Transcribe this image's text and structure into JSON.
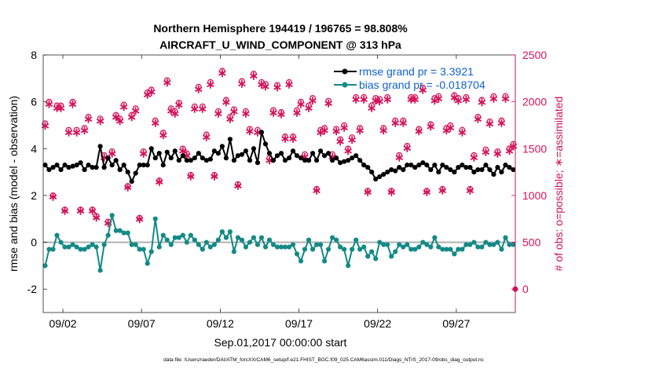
{
  "chart_data": {
    "type": "line",
    "title": "Northern Hemisphere 194419 / 196765 = 98.808%",
    "subtitle": "AIRCRAFT_U_WIND_COMPONENT @ 313 hPa",
    "xlabel": "Sep.01,2017 00:00:00 start",
    "ylabel_left": "rmse and bias (model - observation)",
    "ylabel_right": "# of obs: o=possible; ∗=assimilated",
    "footnote": "data file: /Users/raeder/DAI/ATM_forcXX/CAM6_setup/f.e21.FHIST_BGC.f09_025.CAM6assim.011/Diags_NTrS_2017-09/obs_diag_output.nc",
    "xlim": [
      0,
      30
    ],
    "ylim_left": [
      -3,
      8
    ],
    "ylim_right": [
      -250,
      2500
    ],
    "xticks": [
      1.25,
      6.25,
      11.25,
      16.25,
      21.25,
      26.25
    ],
    "xtick_labels": [
      "09/02",
      "09/07",
      "09/12",
      "09/17",
      "09/22",
      "09/27"
    ],
    "yticks_left": [
      "-2",
      "0",
      "2",
      "4",
      "6",
      "8"
    ],
    "yticks_right": [
      "0",
      "500",
      "1000",
      "1500",
      "2000",
      "2500"
    ],
    "grid": false,
    "legend_placement": "top-right",
    "legend": [
      "rmse grand pr = 3.3921",
      "bias grand pr = -0.018704"
    ],
    "x": [
      0.125,
      0.375,
      0.625,
      0.875,
      1.125,
      1.375,
      1.625,
      1.875,
      2.125,
      2.375,
      2.625,
      2.875,
      3.125,
      3.375,
      3.625,
      3.875,
      4.125,
      4.375,
      4.625,
      4.875,
      5.125,
      5.375,
      5.625,
      5.875,
      6.125,
      6.375,
      6.625,
      6.875,
      7.125,
      7.375,
      7.625,
      7.875,
      8.125,
      8.375,
      8.625,
      8.875,
      9.125,
      9.375,
      9.625,
      9.875,
      10.125,
      10.375,
      10.625,
      10.875,
      11.125,
      11.375,
      11.625,
      11.875,
      12.125,
      12.375,
      12.625,
      12.875,
      13.125,
      13.375,
      13.625,
      13.875,
      14.125,
      14.375,
      14.625,
      14.875,
      15.125,
      15.375,
      15.625,
      15.875,
      16.125,
      16.375,
      16.625,
      16.875,
      17.125,
      17.375,
      17.625,
      17.875,
      18.125,
      18.375,
      18.625,
      18.875,
      19.125,
      19.375,
      19.625,
      19.875,
      20.125,
      20.375,
      20.625,
      20.875,
      21.125,
      21.375,
      21.625,
      21.875,
      22.125,
      22.375,
      22.625,
      22.875,
      23.125,
      23.375,
      23.625,
      23.875,
      24.125,
      24.375,
      24.625,
      24.875,
      25.125,
      25.375,
      25.625,
      25.875,
      26.125,
      26.375,
      26.625,
      26.875,
      27.125,
      27.375,
      27.625,
      27.875,
      28.125,
      28.375,
      28.625,
      28.875,
      29.125,
      29.375,
      29.625,
      29.875
    ],
    "series": [
      {
        "name": "rmse grand pr = 3.3921",
        "color": "#000000",
        "marker": "circle",
        "values": [
          3.3,
          3.1,
          3.2,
          3.3,
          3.1,
          3.3,
          3.2,
          3.25,
          3.3,
          3.4,
          3.1,
          3.3,
          3.2,
          3.2,
          4.1,
          3.2,
          3.6,
          3.3,
          3.5,
          3.1,
          3.3,
          3.0,
          2.6,
          2.95,
          3.3,
          3.3,
          3.3,
          4.0,
          3.6,
          3.8,
          3.3,
          3.85,
          3.6,
          3.9,
          3.5,
          3.7,
          3.5,
          3.5,
          3.6,
          3.8,
          3.6,
          3.5,
          3.55,
          3.9,
          3.8,
          4.1,
          3.6,
          4.4,
          3.5,
          3.7,
          3.75,
          3.9,
          3.5,
          4.0,
          3.4,
          4.7,
          4.2,
          3.8,
          3.5,
          3.7,
          3.8,
          3.5,
          3.6,
          3.9,
          3.7,
          3.6,
          3.5,
          3.5,
          3.8,
          3.5,
          3.9,
          3.7,
          3.8,
          3.5,
          3.6,
          3.4,
          3.45,
          3.5,
          3.6,
          3.7,
          3.5,
          3.3,
          3.2,
          3.0,
          2.7,
          2.8,
          2.9,
          3.0,
          3.1,
          3.05,
          3.2,
          3.1,
          3.3,
          3.3,
          3.2,
          3.3,
          3.4,
          3.3,
          3.1,
          3.3,
          3.0,
          3.3,
          3.2,
          3.1,
          3.0,
          3.2,
          3.3,
          3.2,
          3.2,
          3.0,
          3.1,
          3.1,
          3.3,
          3.1,
          2.9,
          3.2,
          3.0,
          3.3,
          3.2,
          3.1
        ],
        "values_note": ""
      },
      {
        "name": "bias grand pr = -0.018704",
        "color": "#138a86",
        "marker": "circle",
        "values": [
          -1.0,
          -0.3,
          -0.3,
          0.3,
          0.0,
          -0.2,
          -0.2,
          -0.1,
          -0.2,
          -0.3,
          -0.3,
          -0.2,
          -0.1,
          -0.2,
          -1.2,
          -0.1,
          0.3,
          1.15,
          0.5,
          0.5,
          0.4,
          0.4,
          -0.1,
          -0.1,
          -0.3,
          -0.3,
          -0.9,
          -0.4,
          1.0,
          -0.2,
          0.3,
          0.1,
          -0.1,
          0.2,
          0.2,
          0.3,
          0.0,
          0.3,
          0.1,
          -0.1,
          -0.3,
          0.0,
          -0.2,
          -0.1,
          0.1,
          0.45,
          0.2,
          0.45,
          -0.4,
          0.2,
          0.1,
          -0.2,
          0.0,
          0.2,
          -0.1,
          0.2,
          -0.2,
          0.1,
          -0.1,
          -0.2,
          -0.2,
          -0.2,
          -0.2,
          -0.1,
          -0.5,
          -0.8,
          -0.3,
          0.1,
          -0.3,
          -0.1,
          -0.1,
          -0.8,
          -0.3,
          0.2,
          0.1,
          -0.2,
          -0.3,
          -1.0,
          -0.3,
          0.1,
          -0.3,
          -0.2,
          -0.6,
          -0.4,
          -0.7,
          0.0,
          -0.1,
          -0.1,
          -0.6,
          -0.4,
          -0.1,
          -0.2,
          -0.1,
          -0.3,
          -0.3,
          -0.2,
          0.0,
          -0.1,
          -0.2,
          0.2,
          -0.2,
          -0.3,
          -0.3,
          -0.3,
          -0.5,
          -0.3,
          -0.3,
          -0.1,
          -0.1,
          0.0,
          -0.2,
          -0.2,
          0.0,
          -0.1,
          -0.1,
          0.0,
          -0.3,
          0.2,
          -0.1,
          -0.1
        ]
      }
    ],
    "obs_possible": {
      "name": "possible",
      "color": "#d4135a",
      "marker": "o",
      "values": [
        1770,
        2000,
        1000,
        1960,
        1960,
        850,
        1700,
        2000,
        1700,
        850,
        1720,
        1840,
        850,
        780,
        1820,
        1430,
        720,
        1470,
        1860,
        1820,
        1970,
        1100,
        1860,
        1930,
        760,
        1470,
        2100,
        2130,
        1800,
        1160,
        1670,
        2230,
        1930,
        1900,
        1990,
        1500,
        1450,
        1220,
        1950,
        2160,
        1950,
        1650,
        2210,
        1220,
        1900,
        2330,
        2020,
        1840,
        1920,
        1120,
        2220,
        1900,
        1710,
        2300,
        1700,
        2210,
        2190,
        1400,
        1910,
        2180,
        1890,
        1630,
        2210,
        1630,
        1910,
        2000,
        1440,
        1960,
        2040,
        1070,
        1700,
        1720,
        2010,
        1440,
        1710,
        1600,
        1750,
        1500,
        1620,
        2050,
        1720,
        2050,
        1050,
        1960,
        2040,
        2030,
        1720,
        2050,
        1050,
        1800,
        1430,
        1800,
        1530,
        2050,
        2050,
        1710,
        2150,
        1050,
        1760,
        2040,
        2060,
        1070,
        1720,
        1750,
        2070,
        2040,
        1700,
        2050,
        1070,
        1430,
        1840,
        2020,
        1490,
        1790,
        2060,
        1470,
        1800,
        2060,
        1500,
        1550
      ],
      "values_note": ""
    },
    "obs_assimilated": {
      "name": "assimilated",
      "color": "#d4135a",
      "marker": "*",
      "values": [
        1750,
        1980,
        990,
        1940,
        1940,
        840,
        1680,
        1980,
        1680,
        840,
        1700,
        1820,
        840,
        770,
        1800,
        1410,
        710,
        1450,
        1840,
        1800,
        1950,
        1090,
        1840,
        1910,
        750,
        1450,
        2080,
        2110,
        1780,
        1150,
        1650,
        2210,
        1910,
        1880,
        1970,
        1480,
        1430,
        1210,
        1930,
        2140,
        1930,
        1630,
        2190,
        1210,
        1880,
        2310,
        2000,
        1820,
        1900,
        1110,
        2200,
        1880,
        1690,
        2280,
        1680,
        2190,
        2170,
        1380,
        1890,
        2160,
        1870,
        1610,
        2190,
        1610,
        1890,
        1980,
        1420,
        1940,
        2020,
        1060,
        1680,
        1700,
        1990,
        1420,
        1690,
        1580,
        1730,
        1480,
        1600,
        2030,
        1700,
        2030,
        1040,
        1940,
        2020,
        2010,
        1700,
        2030,
        1040,
        1780,
        1410,
        1780,
        1510,
        2030,
        2030,
        1690,
        2130,
        1040,
        1740,
        2020,
        2040,
        1060,
        1700,
        1730,
        2050,
        2020,
        1680,
        2030,
        1060,
        1410,
        1820,
        2000,
        1470,
        1770,
        2040,
        1450,
        1780,
        2040,
        1480,
        1530
      ]
    },
    "obs_right_edge_marker": {
      "x": 30,
      "value": 0
    }
  }
}
